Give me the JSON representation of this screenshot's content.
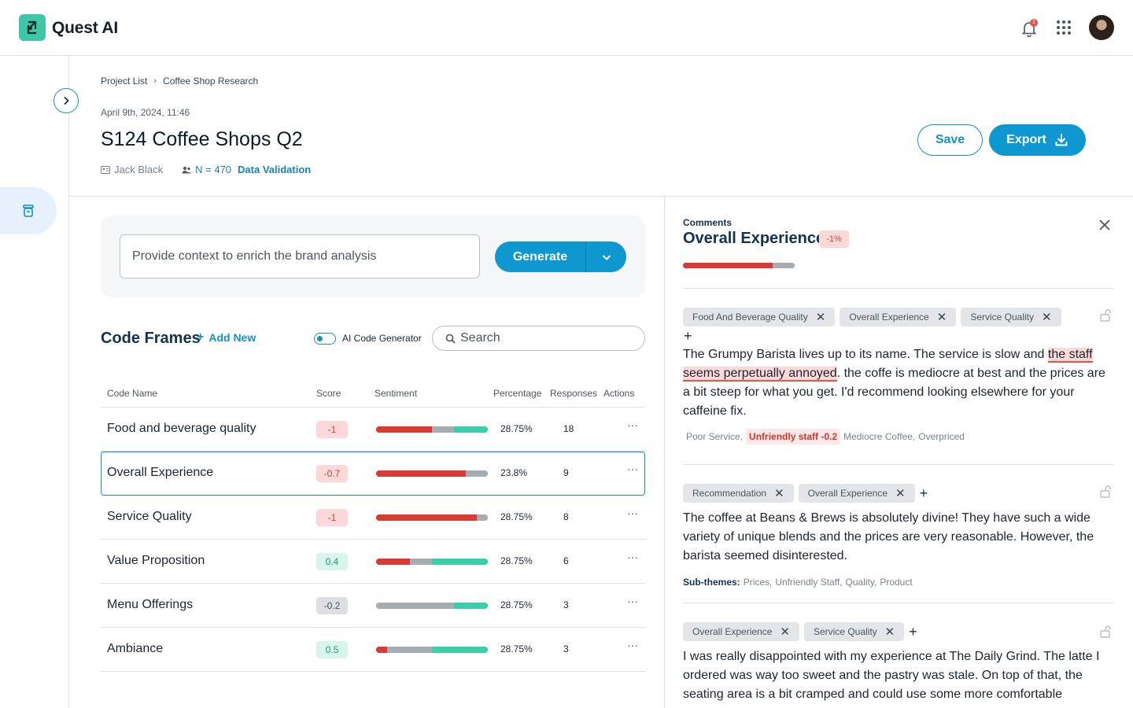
{
  "app": {
    "name": "Quest AI",
    "notification_count": "1"
  },
  "breadcrumb": {
    "items": [
      "Project List",
      "Coffee Shop Research"
    ]
  },
  "project": {
    "datetime": "April 9th, 2024, 11:46",
    "title": "S124 Coffee Shops Q2",
    "owner": "Jack Black",
    "n_label": "N = 470",
    "validation_label": "Data Validation"
  },
  "actions": {
    "save": "Save",
    "export": "Export"
  },
  "context": {
    "placeholder": "Provide context to enrich the brand analysis",
    "generate": "Generate"
  },
  "code_frames": {
    "title": "Code Frames",
    "add_new": "Add New",
    "ai_toggle_label": "AI Code Generator",
    "ai_toggle_on": true,
    "search_placeholder": "Search",
    "columns": [
      "Code Name",
      "Score",
      "Sentiment",
      "Percentage",
      "Responses",
      "Actions"
    ],
    "rows": [
      {
        "name": "Food and beverage quality",
        "score": "-1",
        "tone": "neg",
        "sentiment": {
          "negative": 0.5,
          "neutral": 0.2,
          "positive": 0.3
        },
        "percentage": "28.75%",
        "responses": "18",
        "selected": false
      },
      {
        "name": "Overall Experience",
        "score": "-0.7",
        "tone": "neg",
        "sentiment": {
          "negative": 0.8,
          "neutral": 0.2,
          "positive": 0
        },
        "percentage": "23.8%",
        "responses": "9",
        "selected": true
      },
      {
        "name": "Service Quality",
        "score": "-1",
        "tone": "neg",
        "sentiment": {
          "negative": 0.9,
          "neutral": 0.1,
          "positive": 0
        },
        "percentage": "28.75%",
        "responses": "8",
        "selected": false
      },
      {
        "name": "Value Proposition",
        "score": "0.4",
        "tone": "pos",
        "sentiment": {
          "negative": 0.3,
          "neutral": 0.2,
          "positive": 0.5
        },
        "percentage": "28.75%",
        "responses": "6",
        "selected": false
      },
      {
        "name": "Menu Offerings",
        "score": "-0.2",
        "tone": "neu",
        "sentiment": {
          "negative": 0,
          "neutral": 0.7,
          "positive": 0.3
        },
        "percentage": "28.75%",
        "responses": "3",
        "selected": false
      },
      {
        "name": "Ambiance",
        "score": "0.5",
        "tone": "pos",
        "sentiment": {
          "negative": 0.1,
          "neutral": 0.4,
          "positive": 0.5
        },
        "percentage": "28.75%",
        "responses": "3",
        "selected": false
      }
    ]
  },
  "comments": {
    "label": "Comments",
    "title": "Overall Experience",
    "delta": "-1%",
    "sentiment": {
      "negative": 0.8,
      "neutral": 0.2,
      "positive": 0
    },
    "items": [
      {
        "tags": [
          "Food And Beverage Quality",
          "Overall Experience",
          "Service Quality"
        ],
        "text_before": "The Grumpy Barista lives up to its name. The service is slow and ",
        "highlight": "the staff seems perpetually annoyed",
        "text_after": ". the coffe is mediocre at best and the prices are a bit steep for what you get. I'd recommend looking elsewhere for your caffeine fix.",
        "subthemes_label": "",
        "subthemes": [
          "Poor Service,",
          "Unfriendly staff -0.2",
          "Mediocre Coffee,",
          "Overpriced"
        ]
      },
      {
        "tags": [
          "Recommendation",
          "Overall Experience"
        ],
        "text": "The coffee at Beans & Brews is absolutely divine! They have such a wide variety of unique blends and the prices are very reasonable. However, the barista seemed disinterested.",
        "subthemes_label": "Sub-themes:",
        "subthemes": [
          "Prices,",
          "Unfriendly Staff,",
          "Quality,",
          "Product"
        ]
      },
      {
        "tags": [
          "Overall Experience",
          "Service Quality"
        ],
        "text": "I was really disappointed with my experience at The Daily Grind. The latte I ordered was way too sweet and the pastry was stale. On top of that, the seating area is a bit cramped and could use some more comfortable"
      }
    ]
  },
  "colors": {
    "accent": "#0f98d0",
    "negative": "#d93a34",
    "neutral": "#a7acb3",
    "positive": "#3ccfa7",
    "brand": "#3ec7a7"
  },
  "icons": [
    "logo-icon",
    "bell-icon",
    "apps-grid-icon",
    "chevron-right-icon",
    "archive-icon",
    "download-icon",
    "chevron-down-icon",
    "plus-icon",
    "search-icon",
    "close-icon",
    "lock-icon",
    "user-card-icon",
    "people-icon",
    "more-icon"
  ]
}
